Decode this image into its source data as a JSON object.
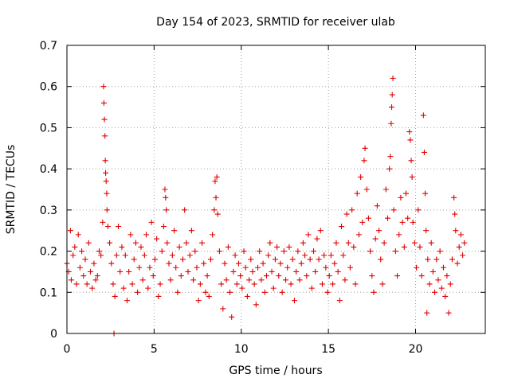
{
  "chart_data": {
    "type": "scatter",
    "title": "Day 154 of 2023, SRMTID for receiver ulab",
    "xlabel": "GPS time / hours",
    "ylabel": "SRMTID / TECUs",
    "xlim": [
      0,
      24
    ],
    "ylim": [
      0,
      0.7
    ],
    "x_ticks": [
      0,
      5,
      10,
      15,
      20
    ],
    "y_ticks": [
      0,
      0.1,
      0.2,
      0.3,
      0.4,
      0.5,
      0.6,
      0.7
    ],
    "x_tick_labels": [
      "0",
      "5",
      "10",
      "15",
      "20"
    ],
    "y_tick_labels": [
      "0",
      "0.1",
      "0.2",
      "0.3",
      "0.4",
      "0.5",
      "0.6",
      "0.7"
    ],
    "marker": "plus",
    "color": "#e00000",
    "grid": true,
    "series": [
      {
        "name": "SRMTID",
        "points": [
          [
            0.0,
            0.17
          ],
          [
            0.1,
            0.15
          ],
          [
            0.2,
            0.25
          ],
          [
            0.25,
            0.13
          ],
          [
            0.35,
            0.19
          ],
          [
            0.45,
            0.21
          ],
          [
            0.55,
            0.12
          ],
          [
            0.65,
            0.24
          ],
          [
            0.75,
            0.16
          ],
          [
            0.85,
            0.2
          ],
          [
            0.95,
            0.14
          ],
          [
            1.05,
            0.18
          ],
          [
            1.15,
            0.12
          ],
          [
            1.25,
            0.22
          ],
          [
            1.35,
            0.15
          ],
          [
            1.45,
            0.11
          ],
          [
            1.55,
            0.17
          ],
          [
            1.65,
            0.13
          ],
          [
            1.75,
            0.14
          ],
          [
            1.85,
            0.2
          ],
          [
            1.95,
            0.19
          ],
          [
            2.05,
            0.27
          ],
          [
            2.1,
            0.6
          ],
          [
            2.12,
            0.56
          ],
          [
            2.15,
            0.52
          ],
          [
            2.18,
            0.48
          ],
          [
            2.2,
            0.42
          ],
          [
            2.22,
            0.39
          ],
          [
            2.25,
            0.37
          ],
          [
            2.28,
            0.34
          ],
          [
            2.3,
            0.3
          ],
          [
            2.35,
            0.26
          ],
          [
            2.45,
            0.22
          ],
          [
            2.55,
            0.17
          ],
          [
            2.65,
            0.12
          ],
          [
            2.7,
            0.0
          ],
          [
            2.75,
            0.09
          ],
          [
            2.85,
            0.19
          ],
          [
            2.95,
            0.26
          ],
          [
            3.05,
            0.15
          ],
          [
            3.15,
            0.21
          ],
          [
            3.25,
            0.11
          ],
          [
            3.35,
            0.19
          ],
          [
            3.45,
            0.08
          ],
          [
            3.55,
            0.15
          ],
          [
            3.65,
            0.24
          ],
          [
            3.75,
            0.12
          ],
          [
            3.85,
            0.18
          ],
          [
            3.95,
            0.22
          ],
          [
            4.05,
            0.1
          ],
          [
            4.15,
            0.16
          ],
          [
            4.25,
            0.21
          ],
          [
            4.35,
            0.13
          ],
          [
            4.45,
            0.19
          ],
          [
            4.55,
            0.24
          ],
          [
            4.65,
            0.11
          ],
          [
            4.75,
            0.16
          ],
          [
            4.85,
            0.27
          ],
          [
            4.95,
            0.14
          ],
          [
            5.05,
            0.18
          ],
          [
            5.15,
            0.23
          ],
          [
            5.25,
            0.09
          ],
          [
            5.35,
            0.12
          ],
          [
            5.45,
            0.2
          ],
          [
            5.55,
            0.26
          ],
          [
            5.62,
            0.35
          ],
          [
            5.66,
            0.33
          ],
          [
            5.7,
            0.3
          ],
          [
            5.75,
            0.22
          ],
          [
            5.85,
            0.17
          ],
          [
            5.95,
            0.13
          ],
          [
            6.05,
            0.19
          ],
          [
            6.15,
            0.25
          ],
          [
            6.25,
            0.16
          ],
          [
            6.35,
            0.1
          ],
          [
            6.45,
            0.21
          ],
          [
            6.55,
            0.14
          ],
          [
            6.65,
            0.18
          ],
          [
            6.75,
            0.3
          ],
          [
            6.85,
            0.22
          ],
          [
            6.95,
            0.15
          ],
          [
            7.05,
            0.19
          ],
          [
            7.15,
            0.25
          ],
          [
            7.25,
            0.13
          ],
          [
            7.35,
            0.2
          ],
          [
            7.45,
            0.16
          ],
          [
            7.55,
            0.08
          ],
          [
            7.65,
            0.12
          ],
          [
            7.75,
            0.22
          ],
          [
            7.85,
            0.17
          ],
          [
            7.95,
            0.1
          ],
          [
            8.05,
            0.14
          ],
          [
            8.15,
            0.09
          ],
          [
            8.25,
            0.18
          ],
          [
            8.35,
            0.24
          ],
          [
            8.45,
            0.3
          ],
          [
            8.5,
            0.37
          ],
          [
            8.55,
            0.33
          ],
          [
            8.6,
            0.38
          ],
          [
            8.65,
            0.29
          ],
          [
            8.75,
            0.2
          ],
          [
            8.85,
            0.12
          ],
          [
            8.95,
            0.06
          ],
          [
            9.05,
            0.17
          ],
          [
            9.15,
            0.13
          ],
          [
            9.25,
            0.21
          ],
          [
            9.35,
            0.1
          ],
          [
            9.45,
            0.04
          ],
          [
            9.55,
            0.15
          ],
          [
            9.65,
            0.19
          ],
          [
            9.75,
            0.12
          ],
          [
            9.85,
            0.17
          ],
          [
            9.95,
            0.14
          ],
          [
            10.05,
            0.11
          ],
          [
            10.15,
            0.2
          ],
          [
            10.25,
            0.16
          ],
          [
            10.35,
            0.09
          ],
          [
            10.45,
            0.13
          ],
          [
            10.55,
            0.18
          ],
          [
            10.65,
            0.15
          ],
          [
            10.75,
            0.12
          ],
          [
            10.85,
            0.07
          ],
          [
            10.95,
            0.16
          ],
          [
            11.05,
            0.2
          ],
          [
            11.15,
            0.13
          ],
          [
            11.25,
            0.17
          ],
          [
            11.35,
            0.1
          ],
          [
            11.45,
            0.14
          ],
          [
            11.55,
            0.19
          ],
          [
            11.65,
            0.22
          ],
          [
            11.75,
            0.15
          ],
          [
            11.85,
            0.11
          ],
          [
            11.95,
            0.18
          ],
          [
            12.05,
            0.21
          ],
          [
            12.15,
            0.14
          ],
          [
            12.25,
            0.17
          ],
          [
            12.35,
            0.1
          ],
          [
            12.45,
            0.2
          ],
          [
            12.55,
            0.13
          ],
          [
            12.65,
            0.16
          ],
          [
            12.75,
            0.21
          ],
          [
            12.85,
            0.12
          ],
          [
            12.95,
            0.18
          ],
          [
            13.05,
            0.08
          ],
          [
            13.15,
            0.15
          ],
          [
            13.25,
            0.2
          ],
          [
            13.35,
            0.13
          ],
          [
            13.45,
            0.17
          ],
          [
            13.55,
            0.22
          ],
          [
            13.65,
            0.19
          ],
          [
            13.75,
            0.14
          ],
          [
            13.85,
            0.24
          ],
          [
            13.95,
            0.18
          ],
          [
            14.05,
            0.11
          ],
          [
            14.15,
            0.2
          ],
          [
            14.25,
            0.15
          ],
          [
            14.35,
            0.23
          ],
          [
            14.45,
            0.18
          ],
          [
            14.55,
            0.25
          ],
          [
            14.65,
            0.12
          ],
          [
            14.75,
            0.19
          ],
          [
            14.85,
            0.16
          ],
          [
            14.95,
            0.1
          ],
          [
            15.05,
            0.14
          ],
          [
            15.15,
            0.19
          ],
          [
            15.25,
            0.12
          ],
          [
            15.35,
            0.17
          ],
          [
            15.45,
            0.22
          ],
          [
            15.55,
            0.15
          ],
          [
            15.65,
            0.08
          ],
          [
            15.75,
            0.26
          ],
          [
            15.85,
            0.19
          ],
          [
            15.95,
            0.13
          ],
          [
            16.05,
            0.29
          ],
          [
            16.15,
            0.22
          ],
          [
            16.25,
            0.16
          ],
          [
            16.35,
            0.3
          ],
          [
            16.45,
            0.21
          ],
          [
            16.55,
            0.12
          ],
          [
            16.65,
            0.34
          ],
          [
            16.75,
            0.24
          ],
          [
            16.85,
            0.38
          ],
          [
            16.95,
            0.27
          ],
          [
            17.05,
            0.42
          ],
          [
            17.1,
            0.45
          ],
          [
            17.2,
            0.35
          ],
          [
            17.3,
            0.28
          ],
          [
            17.4,
            0.2
          ],
          [
            17.5,
            0.14
          ],
          [
            17.6,
            0.1
          ],
          [
            17.7,
            0.23
          ],
          [
            17.8,
            0.31
          ],
          [
            17.9,
            0.25
          ],
          [
            18.0,
            0.18
          ],
          [
            18.1,
            0.12
          ],
          [
            18.2,
            0.22
          ],
          [
            18.3,
            0.35
          ],
          [
            18.4,
            0.28
          ],
          [
            18.5,
            0.4
          ],
          [
            18.55,
            0.43
          ],
          [
            18.6,
            0.51
          ],
          [
            18.63,
            0.55
          ],
          [
            18.66,
            0.58
          ],
          [
            18.7,
            0.62
          ],
          [
            18.75,
            0.3
          ],
          [
            18.85,
            0.2
          ],
          [
            18.95,
            0.14
          ],
          [
            19.05,
            0.24
          ],
          [
            19.15,
            0.33
          ],
          [
            19.25,
            0.27
          ],
          [
            19.35,
            0.21
          ],
          [
            19.45,
            0.34
          ],
          [
            19.55,
            0.28
          ],
          [
            19.65,
            0.49
          ],
          [
            19.7,
            0.47
          ],
          [
            19.75,
            0.42
          ],
          [
            19.8,
            0.38
          ],
          [
            19.85,
            0.27
          ],
          [
            19.95,
            0.22
          ],
          [
            20.05,
            0.16
          ],
          [
            20.15,
            0.3
          ],
          [
            20.25,
            0.21
          ],
          [
            20.35,
            0.14
          ],
          [
            20.45,
            0.53
          ],
          [
            20.5,
            0.44
          ],
          [
            20.55,
            0.34
          ],
          [
            20.6,
            0.25
          ],
          [
            20.65,
            0.05
          ],
          [
            20.7,
            0.18
          ],
          [
            20.8,
            0.12
          ],
          [
            20.9,
            0.22
          ],
          [
            21.0,
            0.15
          ],
          [
            21.1,
            0.1
          ],
          [
            21.2,
            0.18
          ],
          [
            21.3,
            0.13
          ],
          [
            21.4,
            0.2
          ],
          [
            21.5,
            0.11
          ],
          [
            21.6,
            0.16
          ],
          [
            21.7,
            0.09
          ],
          [
            21.8,
            0.14
          ],
          [
            21.9,
            0.05
          ],
          [
            22.0,
            0.12
          ],
          [
            22.1,
            0.18
          ],
          [
            22.2,
            0.33
          ],
          [
            22.25,
            0.29
          ],
          [
            22.3,
            0.25
          ],
          [
            22.4,
            0.17
          ],
          [
            22.5,
            0.21
          ],
          [
            22.6,
            0.24
          ],
          [
            22.7,
            0.19
          ],
          [
            22.8,
            0.22
          ]
        ]
      }
    ]
  }
}
